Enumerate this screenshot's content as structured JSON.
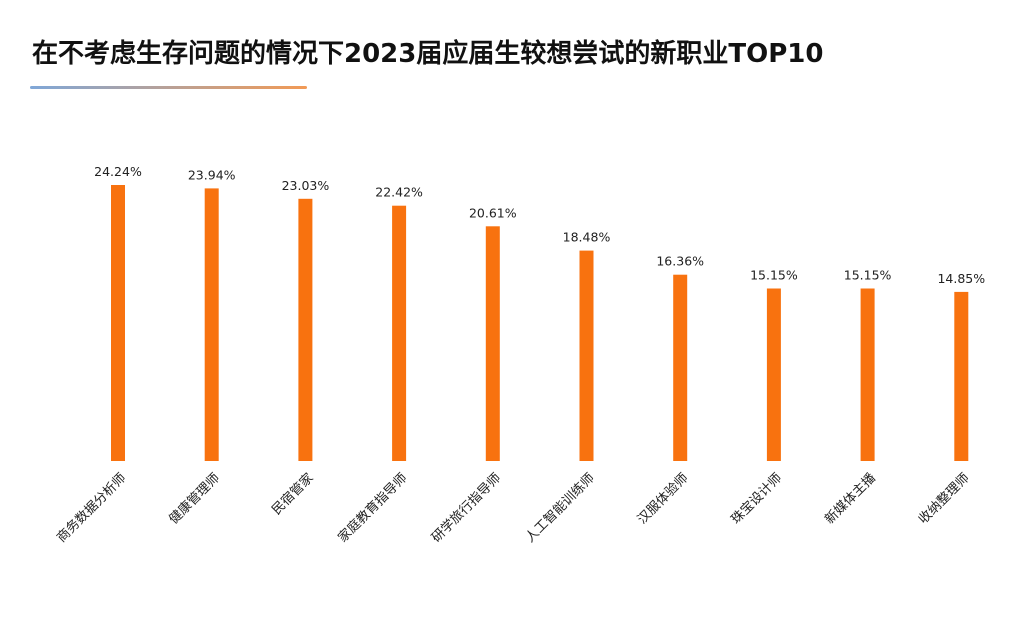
{
  "title": "在不考虑生存问题的情况下2023届应届生较想尝试的新职业TOP10",
  "colors": {
    "bar": "#F8720F",
    "title_rule_start": "#7FA7D8",
    "title_rule_end": "#F29A55",
    "label_text": "#222222"
  },
  "chart_data": {
    "type": "bar",
    "title": "在不考虑生存问题的情况下2023届应届生较想尝试的新职业TOP10",
    "xlabel": "",
    "ylabel": "",
    "categories": [
      "商务数据分析师",
      "健康管理师",
      "民宿管家",
      "家庭教育指导师",
      "研学旅行指导师",
      "人工智能训练师",
      "汉服体验师",
      "珠宝设计师",
      "新媒体主播",
      "收纳整理师"
    ],
    "values": [
      24.24,
      23.94,
      23.03,
      22.42,
      20.61,
      18.48,
      16.36,
      15.15,
      15.15,
      14.85
    ],
    "value_labels": [
      "24.24%",
      "23.94%",
      "23.03%",
      "22.42%",
      "20.61%",
      "18.48%",
      "16.36%",
      "15.15%",
      "15.15%",
      "14.85%"
    ],
    "ylim": [
      0,
      24.24
    ],
    "grid": false,
    "legend": "none",
    "data_labels": "top"
  }
}
